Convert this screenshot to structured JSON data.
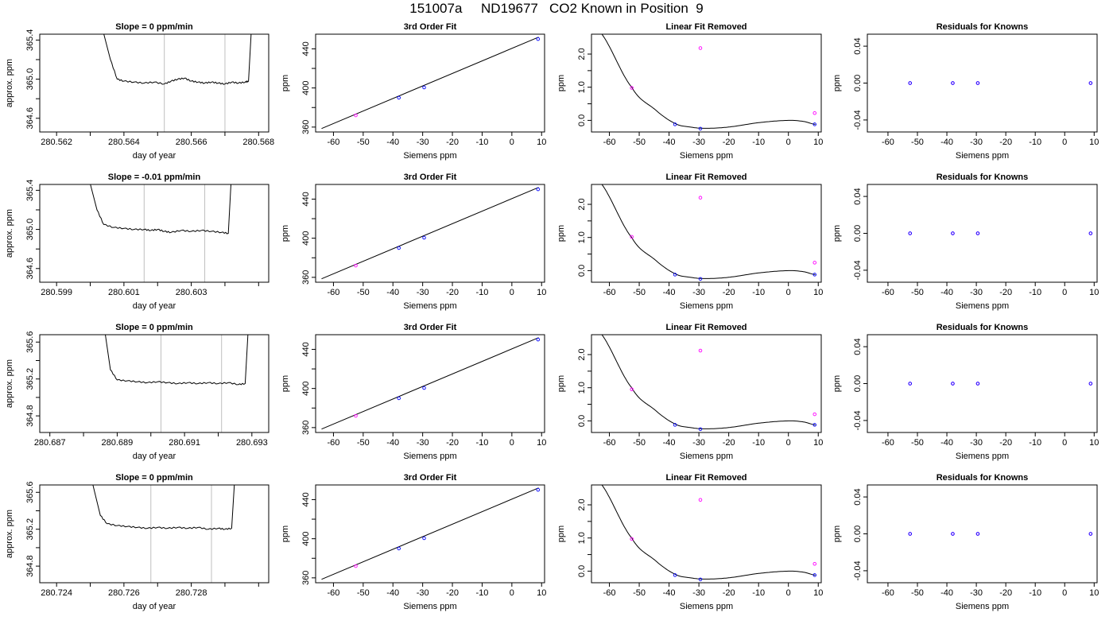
{
  "figure": {
    "title": "151007a     ND19677   CO2 Known in Position  9"
  },
  "chart_data": [
    {
      "type": "line",
      "kind": "trace",
      "row": 0,
      "title": "Slope =  0  ppm/min",
      "xlabel": "day of year",
      "ylabel": "approx. ppm",
      "xlim": [
        280.5615,
        280.5683
      ],
      "ylim": [
        364.46,
        365.46
      ],
      "xticks": [
        "280.562",
        "280.563",
        "280.564",
        "280.565",
        "280.566",
        "280.567",
        "280.568"
      ],
      "xtick_labels_shown": [
        "280.562",
        "280.564",
        "280.566",
        "280.568"
      ],
      "yticks": [
        "364.6",
        "364.8",
        "365.0",
        "365.2",
        "365.4"
      ],
      "ytick_labels_shown": [
        "364.6",
        "365.0",
        "365.4"
      ],
      "vlines": [
        280.5652,
        280.567
      ],
      "x": [
        280.5633,
        280.5636,
        280.5638,
        280.564,
        280.5643,
        280.5646,
        280.5649,
        280.5652,
        280.5654,
        280.5656,
        280.5658,
        280.566,
        280.5662,
        280.5664,
        280.5666,
        280.5668,
        280.567,
        280.5672,
        280.5674,
        280.5676,
        280.5677,
        280.5678
      ],
      "values": [
        365.6,
        365.2,
        365.0,
        364.98,
        364.97,
        364.96,
        364.97,
        364.95,
        364.98,
        365.0,
        365.01,
        364.98,
        364.97,
        364.96,
        364.97,
        364.96,
        364.95,
        364.97,
        364.96,
        364.97,
        364.98,
        365.6
      ]
    },
    {
      "type": "scatter",
      "kind": "fit",
      "row": 0,
      "title": "3rd Order Fit",
      "xlabel": "Siemens ppm",
      "ylabel": "ppm",
      "xlim": [
        -66,
        11
      ],
      "ylim": [
        355,
        455
      ],
      "xticks": [
        "-60",
        "-50",
        "-40",
        "-30",
        "-20",
        "-10",
        "0",
        "10"
      ],
      "yticks": [
        "360",
        "380",
        "400",
        "420",
        "440"
      ],
      "ytick_labels_shown": [
        "360",
        "400",
        "440"
      ],
      "curve": {
        "x": [
          -64,
          9
        ],
        "values": [
          358.5,
          452.0
        ]
      },
      "series": [
        {
          "x": [
            -52.5
          ],
          "values": [
            372.0
          ],
          "color": "#ff00ff"
        },
        {
          "x": [
            -38,
            -29.5,
            8.8
          ],
          "values": [
            390.0,
            400.5,
            450.0
          ],
          "color": "#0000ff"
        }
      ]
    },
    {
      "type": "scatter",
      "kind": "linfit",
      "row": 0,
      "title": "Linear Fit Removed",
      "xlabel": "Siemens ppm",
      "ylabel": "ppm",
      "xlim": [
        -66,
        11
      ],
      "ylim": [
        -0.35,
        2.6
      ],
      "xticks": [
        "-60",
        "-50",
        "-40",
        "-30",
        "-20",
        "-10",
        "0",
        "10"
      ],
      "yticks": [
        "0.0",
        "0.5",
        "1.0",
        "1.5",
        "2.0"
      ],
      "ytick_labels_shown": [
        "0.0",
        "1.0",
        "2.0"
      ],
      "curve_coeffs": [
        0,
        1e-06,
        -0.000575,
        -4e-05
      ],
      "series": [
        {
          "x": [
            -52.5,
            -29.5,
            8.8
          ],
          "values": [
            0.98,
            2.18,
            0.22
          ],
          "color": "#ff00ff"
        },
        {
          "x": [
            -38,
            -29.5,
            8.8
          ],
          "values": [
            -0.12,
            -0.25,
            -0.12
          ],
          "color": "#0000ff"
        }
      ]
    },
    {
      "type": "scatter",
      "kind": "resid",
      "row": 0,
      "title": "Residuals for Knowns",
      "xlabel": "Siemens ppm",
      "ylabel": "ppm",
      "xlim": [
        -67,
        11
      ],
      "ylim": [
        -0.053,
        0.053
      ],
      "xticks": [
        "-60",
        "-50",
        "-40",
        "-30",
        "-20",
        "-10",
        "0",
        "10"
      ],
      "yticks": [
        "-0.04",
        "0.00",
        "0.04"
      ],
      "series": [
        {
          "x": [
            -52.5,
            -38,
            -29.5,
            8.8
          ],
          "values": [
            0,
            0,
            0,
            0
          ],
          "color": "#ff00ff"
        },
        {
          "x": [
            -52.5,
            -38,
            -29.5,
            8.8
          ],
          "values": [
            0,
            0,
            0,
            0
          ],
          "color": "#0000ff"
        }
      ]
    },
    {
      "type": "line",
      "kind": "trace",
      "row": 1,
      "title": "Slope =  -0.01  ppm/min",
      "xlabel": "day of year",
      "ylabel": "approx. ppm",
      "xlim": [
        280.5985,
        280.6053
      ],
      "ylim": [
        364.46,
        365.46
      ],
      "xticks": [
        "280.599",
        "280.600",
        "280.601",
        "280.602",
        "280.603",
        "280.604",
        "280.605"
      ],
      "xtick_labels_shown": [
        "280.599",
        "280.601",
        "280.603"
      ],
      "yticks": [
        "364.6",
        "364.8",
        "365.0",
        "365.2",
        "365.4"
      ],
      "ytick_labels_shown": [
        "364.6",
        "365.0",
        "365.4"
      ],
      "vlines": [
        280.6016,
        280.6034
      ],
      "x": [
        280.5999,
        280.6002,
        280.6004,
        280.6007,
        280.601,
        280.6013,
        280.6016,
        280.6018,
        280.602,
        280.6022,
        280.6024,
        280.6027,
        280.603,
        280.6033,
        280.6036,
        280.6039,
        280.6041,
        280.6042
      ],
      "values": [
        365.6,
        365.2,
        365.05,
        365.02,
        365.01,
        365.0,
        365.0,
        364.99,
        365.0,
        364.98,
        364.97,
        364.99,
        364.98,
        364.99,
        364.98,
        364.97,
        364.96,
        365.6
      ]
    },
    {
      "type": "scatter",
      "kind": "fit",
      "row": 1,
      "title": "3rd Order Fit",
      "xlabel": "Siemens ppm",
      "ylabel": "ppm",
      "xlim": [
        -66,
        11
      ],
      "ylim": [
        355,
        455
      ],
      "xticks": [
        "-60",
        "-50",
        "-40",
        "-30",
        "-20",
        "-10",
        "0",
        "10"
      ],
      "yticks": [
        "360",
        "380",
        "400",
        "420",
        "440"
      ],
      "ytick_labels_shown": [
        "360",
        "400",
        "440"
      ],
      "curve": {
        "x": [
          -64,
          9
        ],
        "values": [
          358.5,
          452.0
        ]
      },
      "series": [
        {
          "x": [
            -52.5
          ],
          "values": [
            372.0
          ],
          "color": "#ff00ff"
        },
        {
          "x": [
            -38,
            -29.5,
            8.8
          ],
          "values": [
            390.0,
            400.5,
            450.0
          ],
          "color": "#0000ff"
        }
      ]
    },
    {
      "type": "scatter",
      "kind": "linfit",
      "row": 1,
      "title": "Linear Fit Removed",
      "xlabel": "Siemens ppm",
      "ylabel": "ppm",
      "xlim": [
        -66,
        11
      ],
      "ylim": [
        -0.35,
        2.6
      ],
      "xticks": [
        "-60",
        "-50",
        "-40",
        "-30",
        "-20",
        "-10",
        "0",
        "10"
      ],
      "yticks": [
        "0.0",
        "0.5",
        "1.0",
        "1.5",
        "2.0"
      ],
      "ytick_labels_shown": [
        "0.0",
        "1.0",
        "2.0"
      ],
      "curve_coeffs": [
        0,
        1e-06,
        -0.000575,
        -4e-05
      ],
      "series": [
        {
          "x": [
            -52.5,
            -29.5,
            8.8
          ],
          "values": [
            1.02,
            2.2,
            0.24
          ],
          "color": "#ff00ff"
        },
        {
          "x": [
            -38,
            -29.5,
            8.8
          ],
          "values": [
            -0.12,
            -0.25,
            -0.12
          ],
          "color": "#0000ff"
        }
      ]
    },
    {
      "type": "scatter",
      "kind": "resid",
      "row": 1,
      "title": "Residuals for Knowns",
      "xlabel": "Siemens ppm",
      "ylabel": "ppm",
      "xlim": [
        -67,
        11
      ],
      "ylim": [
        -0.053,
        0.053
      ],
      "xticks": [
        "-60",
        "-50",
        "-40",
        "-30",
        "-20",
        "-10",
        "0",
        "10"
      ],
      "yticks": [
        "-0.04",
        "0.00",
        "0.04"
      ],
      "series": [
        {
          "x": [
            -52.5,
            -38,
            -29.5,
            8.8
          ],
          "values": [
            0,
            0,
            0,
            0
          ],
          "color": "#ff00ff"
        },
        {
          "x": [
            -52.5,
            -38,
            -29.5,
            8.8
          ],
          "values": [
            0,
            0,
            0,
            0
          ],
          "color": "#0000ff"
        }
      ]
    },
    {
      "type": "line",
      "kind": "trace",
      "row": 2,
      "title": "Slope =  0  ppm/min",
      "xlabel": "day of year",
      "ylabel": "approx. ppm",
      "xlim": [
        280.6867,
        280.6935
      ],
      "ylim": [
        364.62,
        365.68
      ],
      "xticks": [
        "280.687",
        "280.688",
        "280.689",
        "280.690",
        "280.691",
        "280.692",
        "280.693"
      ],
      "xtick_labels_shown": [
        "280.687",
        "280.689",
        "280.691",
        "280.693"
      ],
      "yticks": [
        "364.8",
        "365.0",
        "365.2",
        "365.4",
        "365.6"
      ],
      "ytick_labels_shown": [
        "364.8",
        "365.2",
        "365.6"
      ],
      "vlines": [
        280.6903,
        280.6921
      ],
      "x": [
        280.6886,
        280.6888,
        280.689,
        280.6893,
        280.6896,
        280.6899,
        280.6902,
        280.6905,
        280.6908,
        280.6911,
        280.6914,
        280.6917,
        280.692,
        280.6923,
        280.6926,
        280.6928,
        280.6929
      ],
      "values": [
        365.8,
        365.3,
        365.19,
        365.18,
        365.17,
        365.16,
        365.17,
        365.16,
        365.15,
        365.16,
        365.15,
        365.16,
        365.15,
        365.16,
        365.14,
        365.15,
        365.8
      ]
    },
    {
      "type": "scatter",
      "kind": "fit",
      "row": 2,
      "title": "3rd Order Fit",
      "xlabel": "Siemens ppm",
      "ylabel": "ppm",
      "xlim": [
        -66,
        11
      ],
      "ylim": [
        355,
        455
      ],
      "xticks": [
        "-60",
        "-50",
        "-40",
        "-30",
        "-20",
        "-10",
        "0",
        "10"
      ],
      "yticks": [
        "360",
        "380",
        "400",
        "420",
        "440"
      ],
      "ytick_labels_shown": [
        "360",
        "400",
        "440"
      ],
      "curve": {
        "x": [
          -64,
          9
        ],
        "values": [
          358.5,
          452.0
        ]
      },
      "series": [
        {
          "x": [
            -52.5
          ],
          "values": [
            372.0
          ],
          "color": "#ff00ff"
        },
        {
          "x": [
            -38,
            -29.5,
            8.8
          ],
          "values": [
            390.0,
            400.5,
            450.0
          ],
          "color": "#0000ff"
        }
      ]
    },
    {
      "type": "scatter",
      "kind": "linfit",
      "row": 2,
      "title": "Linear Fit Removed",
      "xlabel": "Siemens ppm",
      "ylabel": "ppm",
      "xlim": [
        -66,
        11
      ],
      "ylim": [
        -0.35,
        2.6
      ],
      "xticks": [
        "-60",
        "-50",
        "-40",
        "-30",
        "-20",
        "-10",
        "0",
        "10"
      ],
      "yticks": [
        "0.0",
        "0.5",
        "1.0",
        "1.5",
        "2.0"
      ],
      "ytick_labels_shown": [
        "0.0",
        "1.0",
        "2.0"
      ],
      "curve_coeffs": [
        0,
        1e-06,
        -0.000575,
        -4e-05
      ],
      "series": [
        {
          "x": [
            -52.5,
            -29.5,
            8.8
          ],
          "values": [
            0.95,
            2.12,
            0.2
          ],
          "color": "#ff00ff"
        },
        {
          "x": [
            -38,
            -29.5,
            8.8
          ],
          "values": [
            -0.12,
            -0.25,
            -0.12
          ],
          "color": "#0000ff"
        }
      ]
    },
    {
      "type": "scatter",
      "kind": "resid",
      "row": 2,
      "title": "Residuals for Knowns",
      "xlabel": "Siemens ppm",
      "ylabel": "ppm",
      "xlim": [
        -67,
        11
      ],
      "ylim": [
        -0.053,
        0.053
      ],
      "xticks": [
        "-60",
        "-50",
        "-40",
        "-30",
        "-20",
        "-10",
        "0",
        "10"
      ],
      "yticks": [
        "-0.04",
        "0.00",
        "0.04"
      ],
      "series": [
        {
          "x": [
            -52.5,
            -38,
            -29.5,
            8.8
          ],
          "values": [
            0,
            0,
            0,
            0
          ],
          "color": "#ff00ff"
        },
        {
          "x": [
            -52.5,
            -38,
            -29.5,
            8.8
          ],
          "values": [
            0,
            0,
            0,
            0
          ],
          "color": "#0000ff"
        }
      ]
    },
    {
      "type": "line",
      "kind": "trace",
      "row": 3,
      "title": "Slope =  0  ppm/min",
      "xlabel": "day of year",
      "ylabel": "approx. ppm",
      "xlim": [
        280.7235,
        280.7303
      ],
      "ylim": [
        364.62,
        365.68
      ],
      "xticks": [
        "280.724",
        "280.725",
        "280.726",
        "280.727",
        "280.728",
        "280.729",
        "280.730"
      ],
      "xtick_labels_shown": [
        "280.724",
        "280.726",
        "280.728"
      ],
      "yticks": [
        "364.8",
        "365.0",
        "365.2",
        "365.4",
        "365.6"
      ],
      "ytick_labels_shown": [
        "364.8",
        "365.2",
        "365.6"
      ],
      "vlines": [
        280.7268,
        280.7286
      ],
      "x": [
        280.725,
        280.7253,
        280.7255,
        280.7258,
        280.7261,
        280.7264,
        280.7267,
        280.727,
        280.7273,
        280.7276,
        280.7279,
        280.7282,
        280.7285,
        280.7288,
        280.729,
        280.7292,
        280.7293
      ],
      "values": [
        365.8,
        365.35,
        365.26,
        365.24,
        365.23,
        365.22,
        365.21,
        365.22,
        365.21,
        365.22,
        365.21,
        365.22,
        365.2,
        365.21,
        365.2,
        365.21,
        365.8
      ]
    },
    {
      "type": "scatter",
      "kind": "fit",
      "row": 3,
      "title": "3rd Order Fit",
      "xlabel": "Siemens ppm",
      "ylabel": "ppm",
      "xlim": [
        -66,
        11
      ],
      "ylim": [
        355,
        455
      ],
      "xticks": [
        "-60",
        "-50",
        "-40",
        "-30",
        "-20",
        "-10",
        "0",
        "10"
      ],
      "yticks": [
        "360",
        "380",
        "400",
        "420",
        "440"
      ],
      "ytick_labels_shown": [
        "360",
        "400",
        "440"
      ],
      "curve": {
        "x": [
          -64,
          9
        ],
        "values": [
          358.5,
          452.0
        ]
      },
      "series": [
        {
          "x": [
            -52.5
          ],
          "values": [
            372.0
          ],
          "color": "#ff00ff"
        },
        {
          "x": [
            -38,
            -29.5,
            8.8
          ],
          "values": [
            390.0,
            400.5,
            450.0
          ],
          "color": "#0000ff"
        }
      ]
    },
    {
      "type": "scatter",
      "kind": "linfit",
      "row": 3,
      "title": "Linear Fit Removed",
      "xlabel": "Siemens ppm",
      "ylabel": "ppm",
      "xlim": [
        -66,
        11
      ],
      "ylim": [
        -0.35,
        2.6
      ],
      "xticks": [
        "-60",
        "-50",
        "-40",
        "-30",
        "-20",
        "-10",
        "0",
        "10"
      ],
      "yticks": [
        "0.0",
        "0.5",
        "1.0",
        "1.5",
        "2.0"
      ],
      "ytick_labels_shown": [
        "0.0",
        "1.0",
        "2.0"
      ],
      "curve_coeffs": [
        0,
        1e-06,
        -0.000575,
        -4e-05
      ],
      "series": [
        {
          "x": [
            -52.5,
            -29.5,
            8.8
          ],
          "values": [
            0.97,
            2.15,
            0.22
          ],
          "color": "#ff00ff"
        },
        {
          "x": [
            -38,
            -29.5,
            8.8
          ],
          "values": [
            -0.12,
            -0.25,
            -0.12
          ],
          "color": "#0000ff"
        }
      ]
    },
    {
      "type": "scatter",
      "kind": "resid",
      "row": 3,
      "title": "Residuals for Knowns",
      "xlabel": "Siemens ppm",
      "ylabel": "ppm",
      "xlim": [
        -67,
        11
      ],
      "ylim": [
        -0.053,
        0.053
      ],
      "xticks": [
        "-60",
        "-50",
        "-40",
        "-30",
        "-20",
        "-10",
        "0",
        "10"
      ],
      "yticks": [
        "-0.04",
        "0.00",
        "0.04"
      ],
      "series": [
        {
          "x": [
            -52.5,
            -38,
            -29.5,
            8.8
          ],
          "values": [
            0,
            0,
            0,
            0
          ],
          "color": "#ff00ff"
        },
        {
          "x": [
            -52.5,
            -38,
            -29.5,
            8.8
          ],
          "values": [
            0,
            0,
            0,
            0
          ],
          "color": "#0000ff"
        }
      ]
    }
  ]
}
